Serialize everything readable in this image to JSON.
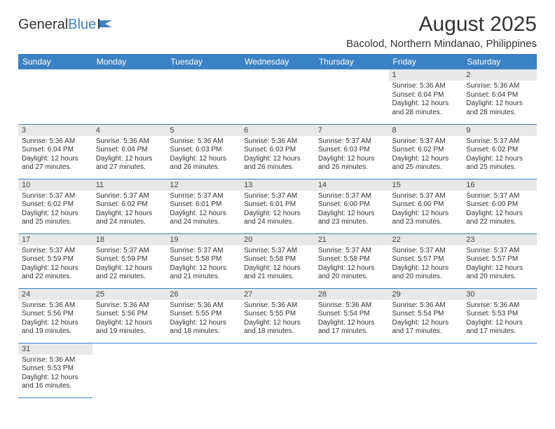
{
  "brand": {
    "part1": "General",
    "part2": "Blue"
  },
  "title": {
    "month": "August 2025",
    "location": "Bacolod, Northern Mindanao, Philippines"
  },
  "colors": {
    "accent": "#3b82c4",
    "headerRow": "#e8e8e8",
    "text": "#333333",
    "bg": "#ffffff"
  },
  "weekdays": [
    "Sunday",
    "Monday",
    "Tuesday",
    "Wednesday",
    "Thursday",
    "Friday",
    "Saturday"
  ],
  "calendar": {
    "type": "table",
    "startWeekday": 5,
    "daysInMonth": 31,
    "cell_fontsize": 10,
    "header_fontsize": 12,
    "days": {
      "1": {
        "sunrise": "5:36 AM",
        "sunset": "6:04 PM",
        "daylight": "12 hours and 28 minutes."
      },
      "2": {
        "sunrise": "5:36 AM",
        "sunset": "6:04 PM",
        "daylight": "12 hours and 28 minutes."
      },
      "3": {
        "sunrise": "5:36 AM",
        "sunset": "6:04 PM",
        "daylight": "12 hours and 27 minutes."
      },
      "4": {
        "sunrise": "5:36 AM",
        "sunset": "6:04 PM",
        "daylight": "12 hours and 27 minutes."
      },
      "5": {
        "sunrise": "5:36 AM",
        "sunset": "6:03 PM",
        "daylight": "12 hours and 26 minutes."
      },
      "6": {
        "sunrise": "5:36 AM",
        "sunset": "6:03 PM",
        "daylight": "12 hours and 26 minutes."
      },
      "7": {
        "sunrise": "5:37 AM",
        "sunset": "6:03 PM",
        "daylight": "12 hours and 26 minutes."
      },
      "8": {
        "sunrise": "5:37 AM",
        "sunset": "6:02 PM",
        "daylight": "12 hours and 25 minutes."
      },
      "9": {
        "sunrise": "5:37 AM",
        "sunset": "6:02 PM",
        "daylight": "12 hours and 25 minutes."
      },
      "10": {
        "sunrise": "5:37 AM",
        "sunset": "6:02 PM",
        "daylight": "12 hours and 25 minutes."
      },
      "11": {
        "sunrise": "5:37 AM",
        "sunset": "6:02 PM",
        "daylight": "12 hours and 24 minutes."
      },
      "12": {
        "sunrise": "5:37 AM",
        "sunset": "6:01 PM",
        "daylight": "12 hours and 24 minutes."
      },
      "13": {
        "sunrise": "5:37 AM",
        "sunset": "6:01 PM",
        "daylight": "12 hours and 24 minutes."
      },
      "14": {
        "sunrise": "5:37 AM",
        "sunset": "6:00 PM",
        "daylight": "12 hours and 23 minutes."
      },
      "15": {
        "sunrise": "5:37 AM",
        "sunset": "6:00 PM",
        "daylight": "12 hours and 23 minutes."
      },
      "16": {
        "sunrise": "5:37 AM",
        "sunset": "6:00 PM",
        "daylight": "12 hours and 22 minutes."
      },
      "17": {
        "sunrise": "5:37 AM",
        "sunset": "5:59 PM",
        "daylight": "12 hours and 22 minutes."
      },
      "18": {
        "sunrise": "5:37 AM",
        "sunset": "5:59 PM",
        "daylight": "12 hours and 22 minutes."
      },
      "19": {
        "sunrise": "5:37 AM",
        "sunset": "5:58 PM",
        "daylight": "12 hours and 21 minutes."
      },
      "20": {
        "sunrise": "5:37 AM",
        "sunset": "5:58 PM",
        "daylight": "12 hours and 21 minutes."
      },
      "21": {
        "sunrise": "5:37 AM",
        "sunset": "5:58 PM",
        "daylight": "12 hours and 20 minutes."
      },
      "22": {
        "sunrise": "5:37 AM",
        "sunset": "5:57 PM",
        "daylight": "12 hours and 20 minutes."
      },
      "23": {
        "sunrise": "5:37 AM",
        "sunset": "5:57 PM",
        "daylight": "12 hours and 20 minutes."
      },
      "24": {
        "sunrise": "5:36 AM",
        "sunset": "5:56 PM",
        "daylight": "12 hours and 19 minutes."
      },
      "25": {
        "sunrise": "5:36 AM",
        "sunset": "5:56 PM",
        "daylight": "12 hours and 19 minutes."
      },
      "26": {
        "sunrise": "5:36 AM",
        "sunset": "5:55 PM",
        "daylight": "12 hours and 18 minutes."
      },
      "27": {
        "sunrise": "5:36 AM",
        "sunset": "5:55 PM",
        "daylight": "12 hours and 18 minutes."
      },
      "28": {
        "sunrise": "5:36 AM",
        "sunset": "5:54 PM",
        "daylight": "12 hours and 17 minutes."
      },
      "29": {
        "sunrise": "5:36 AM",
        "sunset": "5:54 PM",
        "daylight": "12 hours and 17 minutes."
      },
      "30": {
        "sunrise": "5:36 AM",
        "sunset": "5:53 PM",
        "daylight": "12 hours and 17 minutes."
      },
      "31": {
        "sunrise": "5:36 AM",
        "sunset": "5:53 PM",
        "daylight": "12 hours and 16 minutes."
      }
    },
    "labels": {
      "sunrise": "Sunrise:",
      "sunset": "Sunset:",
      "daylight": "Daylight:"
    }
  }
}
